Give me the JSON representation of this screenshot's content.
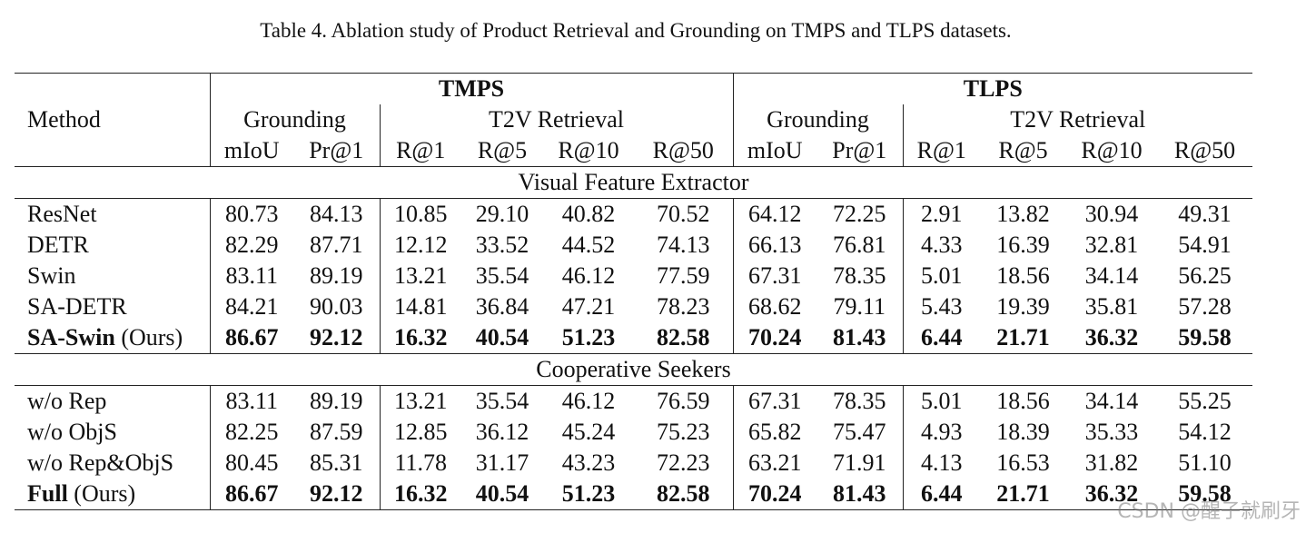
{
  "caption": "Table 4. Ablation study of Product Retrieval and Grounding on TMPS and TLPS datasets.",
  "header": {
    "method": "Method",
    "groups": [
      "TMPS",
      "TLPS"
    ],
    "subgroups": [
      "Grounding",
      "T2V Retrieval",
      "Grounding",
      "T2V Retrieval"
    ],
    "metrics": [
      "mIoU",
      "Pr@1",
      "R@1",
      "R@5",
      "R@10",
      "R@50",
      "mIoU",
      "Pr@1",
      "R@1",
      "R@5",
      "R@10",
      "R@50"
    ]
  },
  "sections": [
    {
      "title": "Visual Feature Extractor",
      "rows": [
        {
          "method": "ResNet",
          "suffix": "",
          "values": [
            "80.73",
            "84.13",
            "10.85",
            "29.10",
            "40.82",
            "70.52",
            "64.12",
            "72.25",
            "2.91",
            "13.82",
            "30.94",
            "49.31"
          ]
        },
        {
          "method": "DETR",
          "suffix": "",
          "values": [
            "82.29",
            "87.71",
            "12.12",
            "33.52",
            "44.52",
            "74.13",
            "66.13",
            "76.81",
            "4.33",
            "16.39",
            "32.81",
            "54.91"
          ]
        },
        {
          "method": "Swin",
          "suffix": "",
          "values": [
            "83.11",
            "89.19",
            "13.21",
            "35.54",
            "46.12",
            "77.59",
            "67.31",
            "78.35",
            "5.01",
            "18.56",
            "34.14",
            "56.25"
          ]
        },
        {
          "method": "SA-DETR",
          "suffix": "",
          "values": [
            "84.21",
            "90.03",
            "14.81",
            "36.84",
            "47.21",
            "78.23",
            "68.62",
            "79.11",
            "5.43",
            "19.39",
            "35.81",
            "57.28"
          ]
        },
        {
          "method": "SA-Swin",
          "suffix": " (Ours)",
          "bold": true,
          "values": [
            "86.67",
            "92.12",
            "16.32",
            "40.54",
            "51.23",
            "82.58",
            "70.24",
            "81.43",
            "6.44",
            "21.71",
            "36.32",
            "59.58"
          ]
        }
      ]
    },
    {
      "title": "Cooperative Seekers",
      "rows": [
        {
          "method": "w/o Rep",
          "suffix": "",
          "values": [
            "83.11",
            "89.19",
            "13.21",
            "35.54",
            "46.12",
            "76.59",
            "67.31",
            "78.35",
            "5.01",
            "18.56",
            "34.14",
            "55.25"
          ]
        },
        {
          "method": "w/o ObjS",
          "suffix": "",
          "values": [
            "82.25",
            "87.59",
            "12.85",
            "36.12",
            "45.24",
            "75.23",
            "65.82",
            "75.47",
            "4.93",
            "18.39",
            "35.33",
            "54.12"
          ]
        },
        {
          "method": "w/o Rep&ObjS",
          "suffix": "",
          "values": [
            "80.45",
            "85.31",
            "11.78",
            "31.17",
            "43.23",
            "72.23",
            "63.21",
            "71.91",
            "4.13",
            "16.53",
            "31.82",
            "51.10"
          ]
        },
        {
          "method": "Full",
          "suffix": " (Ours)",
          "bold": true,
          "values": [
            "86.67",
            "92.12",
            "16.32",
            "40.54",
            "51.23",
            "82.58",
            "70.24",
            "81.43",
            "6.44",
            "21.71",
            "36.32",
            "59.58"
          ]
        }
      ]
    }
  ],
  "watermark": "CSDN @醒子就刷牙"
}
